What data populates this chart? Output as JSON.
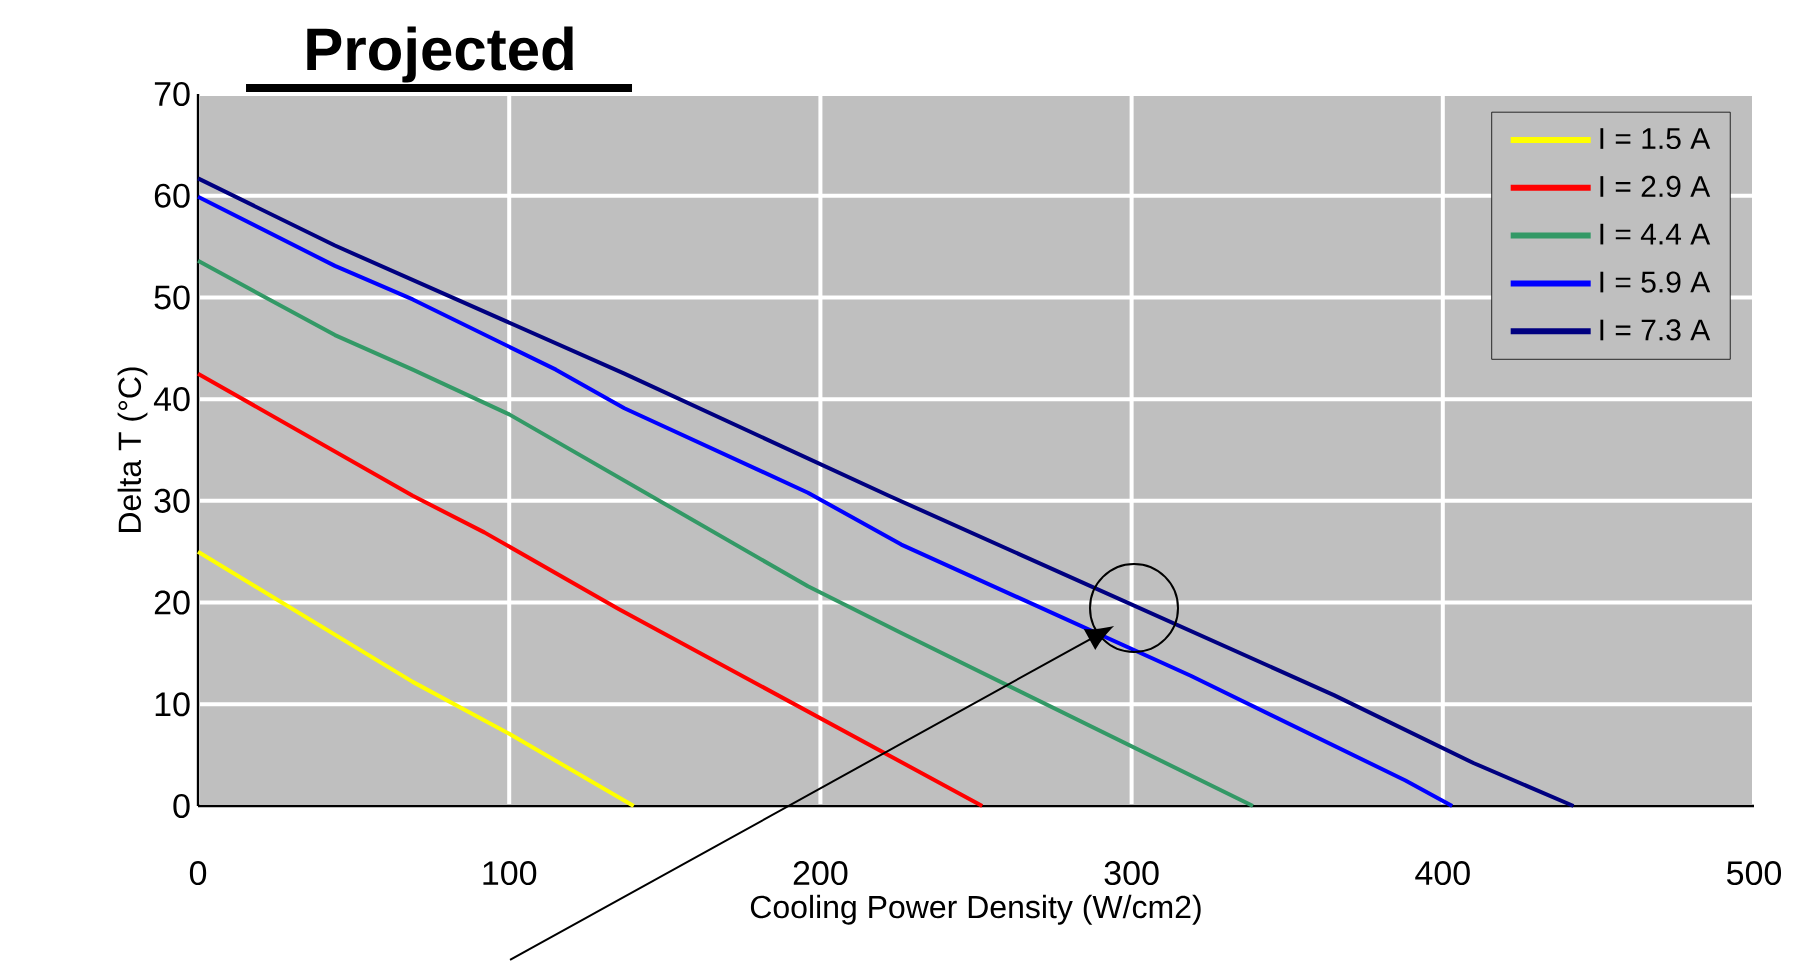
{
  "chart_data": {
    "type": "line",
    "title": "Projected",
    "xlabel": "Cooling Power Density (W/cm2)",
    "ylabel": "Delta T (°C)",
    "xlim": [
      0,
      500
    ],
    "xticks": [
      0,
      100,
      200,
      300,
      400,
      500
    ],
    "ylim": [
      0,
      70
    ],
    "yticks": [
      0,
      10,
      20,
      30,
      40,
      50,
      60,
      70
    ],
    "grid": true,
    "legend": "top right",
    "line_style": "solid",
    "series": [
      {
        "name": "I = 1.5 A",
        "color": "#ffff00",
        "x": [
          0,
          69,
          100,
          140
        ],
        "values": [
          25.0,
          12.2,
          7.1,
          0
        ]
      },
      {
        "name": "I = 2.9 A",
        "color": "#ff0000",
        "x": [
          0,
          69,
          92,
          135,
          252
        ],
        "values": [
          42.5,
          30.5,
          26.9,
          19.4,
          0
        ]
      },
      {
        "name": "I = 4.4 A",
        "color": "#339966",
        "x": [
          0,
          44,
          69,
          100,
          196,
          226,
          339
        ],
        "values": [
          53.6,
          46.3,
          42.9,
          38.5,
          21.6,
          17.0,
          0
        ]
      },
      {
        "name": "I = 5.9 A",
        "color": "#0000ff",
        "x": [
          0,
          44,
          69,
          115,
          137,
          196,
          226,
          319,
          388,
          403
        ],
        "values": [
          59.9,
          53.1,
          49.8,
          42.9,
          39.1,
          30.8,
          25.7,
          12.8,
          2.5,
          0
        ]
      },
      {
        "name": "I = 7.3 A",
        "color": "#000080",
        "x": [
          0,
          44,
          137,
          222,
          365,
          410,
          442
        ],
        "values": [
          61.7,
          55.1,
          42.5,
          30.5,
          10.9,
          4.2,
          0
        ]
      }
    ]
  }
}
